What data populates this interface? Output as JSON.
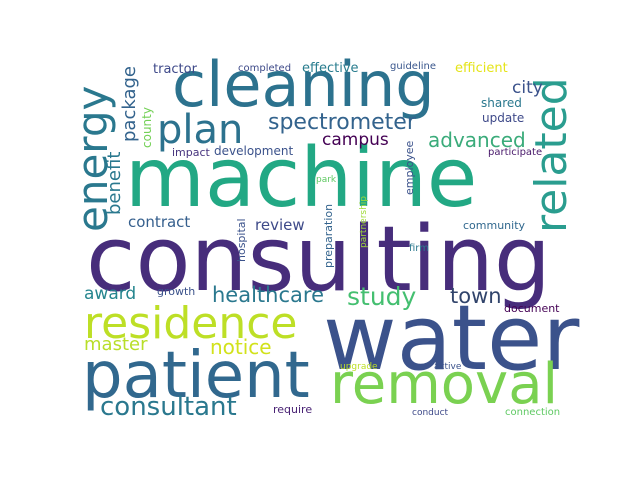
{
  "words": [
    {
      "id": "machine",
      "text": "machine",
      "color": "#22a884"
    },
    {
      "id": "consulting",
      "text": "consulting",
      "color": "#472d7b"
    },
    {
      "id": "water",
      "text": "water",
      "color": "#3b528b"
    },
    {
      "id": "cleaning",
      "text": "cleaning",
      "color": "#2c728e"
    },
    {
      "id": "patient",
      "text": "patient",
      "color": "#31688e"
    },
    {
      "id": "removal",
      "text": "removal",
      "color": "#7ad151"
    },
    {
      "id": "residence",
      "text": "residence",
      "color": "#bddf26"
    },
    {
      "id": "energy",
      "text": "energy",
      "color": "#2a788e"
    },
    {
      "id": "related",
      "text": "related",
      "color": "#2a9d8f"
    },
    {
      "id": "plan",
      "text": "plan",
      "color": "#2c728e"
    },
    {
      "id": "consultant",
      "text": "consultant",
      "color": "#2a788e"
    },
    {
      "id": "study",
      "text": "study",
      "color": "#44bf70"
    },
    {
      "id": "spectrometer",
      "text": "spectrometer",
      "color": "#33638d"
    },
    {
      "id": "advanced",
      "text": "advanced",
      "color": "#3aab7a"
    },
    {
      "id": "healthcare",
      "text": "healthcare",
      "color": "#2a788e"
    },
    {
      "id": "town",
      "text": "town",
      "color": "#31446b"
    },
    {
      "id": "notice",
      "text": "notice",
      "color": "#d2e21b"
    },
    {
      "id": "master",
      "text": "master",
      "color": "#b8de29"
    },
    {
      "id": "award",
      "text": "award",
      "color": "#25858e"
    },
    {
      "id": "benefit",
      "text": "benefit",
      "color": "#2a788e"
    },
    {
      "id": "package",
      "text": "package",
      "color": "#33638d"
    },
    {
      "id": "campus",
      "text": "campus",
      "color": "#440154"
    },
    {
      "id": "city",
      "text": "city",
      "color": "#3b528b"
    },
    {
      "id": "contract",
      "text": "contract",
      "color": "#355f8d"
    },
    {
      "id": "review",
      "text": "review",
      "color": "#3e4a89"
    },
    {
      "id": "effective",
      "text": "effective",
      "color": "#287c8e"
    },
    {
      "id": "efficient",
      "text": "efficient",
      "color": "#e5e419"
    },
    {
      "id": "tractor",
      "text": "tractor",
      "color": "#3e4989"
    },
    {
      "id": "completed",
      "text": "completed",
      "color": "#3e4a89"
    },
    {
      "id": "guideline",
      "text": "guideline",
      "color": "#39568c"
    },
    {
      "id": "shared",
      "text": "shared",
      "color": "#2a788e"
    },
    {
      "id": "update",
      "text": "update",
      "color": "#3e4989"
    },
    {
      "id": "county",
      "text": "county",
      "color": "#73d056"
    },
    {
      "id": "impact",
      "text": "impact",
      "color": "#46337e"
    },
    {
      "id": "development",
      "text": "development",
      "color": "#3b528b"
    },
    {
      "id": "employee",
      "text": "employee",
      "color": "#3b528b"
    },
    {
      "id": "participate",
      "text": "participate",
      "color": "#48186a"
    },
    {
      "id": "park",
      "text": "park",
      "color": "#5ec962"
    },
    {
      "id": "hospital",
      "text": "hospital",
      "color": "#3b528b"
    },
    {
      "id": "preparation",
      "text": "preparation",
      "color": "#33638d"
    },
    {
      "id": "partnership",
      "text": "partnership",
      "color": "#a0da39"
    },
    {
      "id": "community",
      "text": "community",
      "color": "#31688e"
    },
    {
      "id": "firm",
      "text": "firm",
      "color": "#2a788e"
    },
    {
      "id": "growth",
      "text": "growth",
      "color": "#3b528b"
    },
    {
      "id": "document",
      "text": "document",
      "color": "#440154"
    },
    {
      "id": "upgrade",
      "text": "upgrade",
      "color": "#bddf26"
    },
    {
      "id": "active",
      "text": "active",
      "color": "#3b528b"
    },
    {
      "id": "require",
      "text": "require",
      "color": "#482173"
    },
    {
      "id": "conduct",
      "text": "conduct",
      "color": "#3e4a89"
    },
    {
      "id": "connection",
      "text": "connection",
      "color": "#5ec962"
    }
  ]
}
